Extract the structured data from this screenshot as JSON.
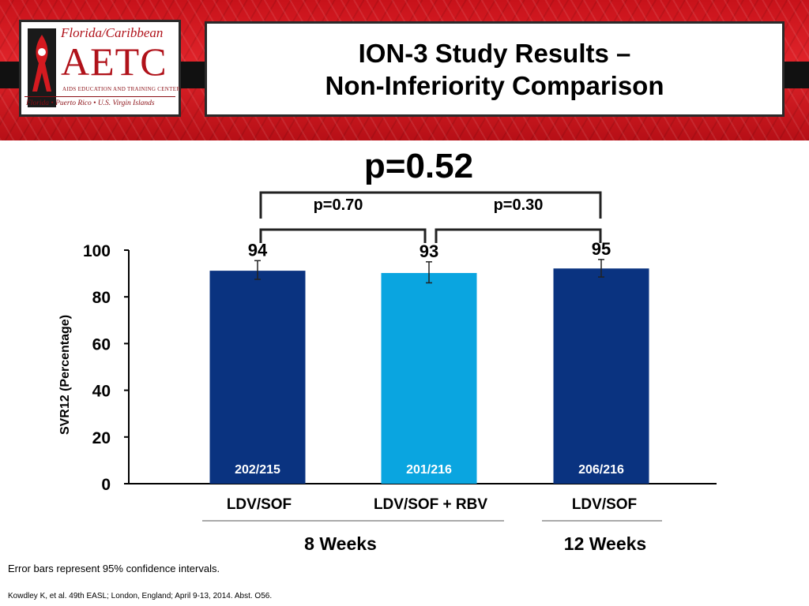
{
  "header": {
    "title_line1": "ION-3 Study Results –",
    "title_line2": "Non-Inferiority Comparison",
    "banner_color": "#d41a20"
  },
  "logo": {
    "top_text": "Florida/Caribbean",
    "main_text": "AETC",
    "sub_text": "AIDS EDUCATION AND TRAINING CENTER",
    "footer_text": "Florida • Puerto Rico • U.S. Virgin Islands"
  },
  "chart_data": {
    "type": "bar",
    "ylabel": "SVR12 (Percentage)",
    "ylim": [
      0,
      100
    ],
    "yticks": [
      0,
      20,
      40,
      60,
      80,
      100
    ],
    "categories": [
      "LDV/SOF",
      "LDV/SOF + RBV",
      "LDV/SOF"
    ],
    "values": [
      94,
      93,
      95
    ],
    "value_labels": [
      "94",
      "93",
      "95"
    ],
    "error_low": [
      87.5,
      86,
      88.5
    ],
    "error_high": [
      95.5,
      95,
      96
    ],
    "counts": [
      "202/215",
      "201/216",
      "206/216"
    ],
    "colors": [
      "#0a3380",
      "#0aa5e0",
      "#0a3380"
    ],
    "groups": [
      {
        "label": "8 Weeks",
        "bars": [
          0,
          1
        ]
      },
      {
        "label": "12 Weeks",
        "bars": [
          2
        ]
      }
    ],
    "comparisons": {
      "overall": {
        "label": "p=0.52",
        "bars": [
          0,
          2
        ]
      },
      "pairs": [
        {
          "label": "p=0.70",
          "bars": [
            0,
            1
          ]
        },
        {
          "label": "p=0.30",
          "bars": [
            1,
            2
          ]
        }
      ]
    }
  },
  "footnote": "Error bars represent 95% confidence intervals.",
  "citation": "Kowdley K, et al. 49th EASL; London, England; April 9-13, 2014. Abst. O56."
}
